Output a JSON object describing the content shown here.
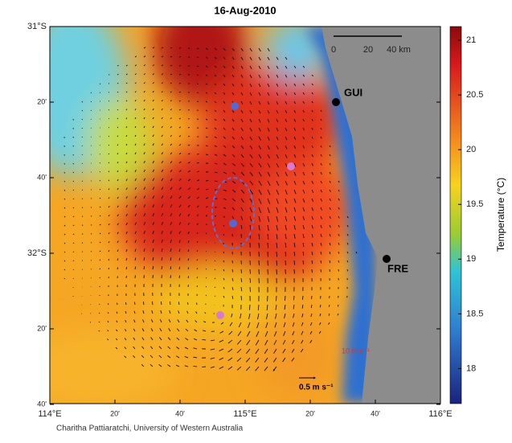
{
  "map": {
    "title": "16-Aug-2010",
    "x_labels": [
      "114°E",
      "20'",
      "40'",
      "115°E",
      "20'",
      "40'",
      "116°E"
    ],
    "y_labels": [
      "31°S",
      "20'",
      "40'",
      "32°S",
      "20'",
      "40'"
    ],
    "places": [
      "GUI",
      "FRE"
    ],
    "scale_bar": [
      "0",
      "20",
      "40 km"
    ],
    "vector_scale": "0.5 m s⁻¹",
    "wind_label": "10 m s⁻¹",
    "colorbar": {
      "label": "Temperature (°C)",
      "lim": [
        17.68,
        21.125
      ],
      "ticks": [
        18,
        18.5,
        19,
        19.5,
        20,
        20.5,
        21
      ]
    },
    "credit": "Charitha Pattiaratchi, University of Western Australia"
  }
}
